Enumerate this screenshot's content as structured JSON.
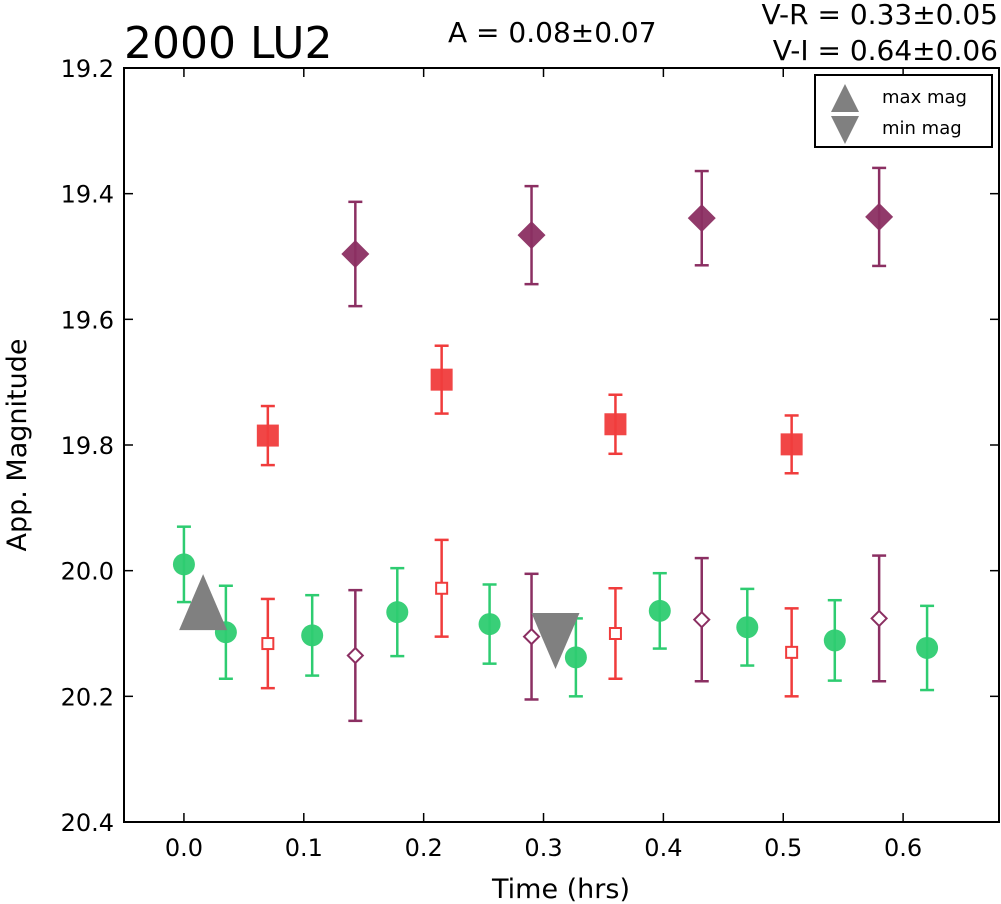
{
  "chart_data": {
    "type": "scatter",
    "title": "2000 LU2",
    "amplitude_text": "A  = 0.08±0.07",
    "vr_text": "V-R = 0.33±0.05",
    "vi_text": "V-I  = 0.64±0.06",
    "xlabel": "Time (hrs)",
    "ylabel": "App. Magnitude",
    "xlim": [
      -0.05,
      0.68
    ],
    "ylim": [
      19.2,
      20.4
    ],
    "y_inverted": true,
    "xticks": [
      "0.0",
      "0.1",
      "0.2",
      "0.3",
      "0.4",
      "0.5",
      "0.6"
    ],
    "yticks": [
      "19.2",
      "19.4",
      "19.6",
      "19.8",
      "20.0",
      "20.2",
      "20.4"
    ],
    "legend": {
      "placement": "top-right",
      "entries": [
        {
          "label": "max mag",
          "marker": "triangle-up",
          "color": "#808080"
        },
        {
          "label": "min mag",
          "marker": "triangle-down",
          "color": "#808080"
        }
      ]
    },
    "series": [
      {
        "marker": "circle",
        "color": "#2ecc71",
        "x": [
          0.0,
          0.035,
          0.107,
          0.178,
          0.255,
          0.327,
          0.397,
          0.47,
          0.543,
          0.62
        ],
        "y": [
          19.99,
          20.098,
          20.103,
          20.066,
          20.085,
          20.138,
          20.064,
          20.09,
          20.111,
          20.123
        ],
        "err": [
          0.06,
          0.074,
          0.064,
          0.07,
          0.063,
          0.062,
          0.06,
          0.061,
          0.064,
          0.067
        ]
      },
      {
        "marker": "square-filled",
        "color": "#f03c3c",
        "x": [
          0.07,
          0.215,
          0.36,
          0.507
        ],
        "y": [
          19.785,
          19.696,
          19.767,
          19.799
        ],
        "err": [
          0.047,
          0.054,
          0.047,
          0.046
        ]
      },
      {
        "marker": "diamond-filled",
        "color": "#8b2f62",
        "x": [
          0.143,
          0.29,
          0.432,
          0.58
        ],
        "y": [
          19.496,
          19.466,
          19.439,
          19.437
        ],
        "err": [
          0.083,
          0.078,
          0.075,
          0.078
        ]
      },
      {
        "marker": "square-open",
        "color": "#f03c3c",
        "x": [
          0.07,
          0.215,
          0.36,
          0.507
        ],
        "y": [
          20.116,
          20.028,
          20.1,
          20.13
        ],
        "err": [
          0.071,
          0.077,
          0.072,
          0.07
        ]
      },
      {
        "marker": "diamond-open",
        "color": "#8b2f62",
        "x": [
          0.143,
          0.29,
          0.432,
          0.58
        ],
        "y": [
          20.135,
          20.105,
          20.078,
          20.076
        ],
        "err": [
          0.104,
          0.1,
          0.098,
          0.1
        ]
      }
    ],
    "extrema": [
      {
        "kind": "max",
        "marker": "triangle-up",
        "x": 0.016,
        "y": 20.05,
        "color": "#808080"
      },
      {
        "kind": "min",
        "marker": "triangle-down",
        "x": 0.31,
        "y": 20.112,
        "color": "#808080"
      }
    ]
  }
}
